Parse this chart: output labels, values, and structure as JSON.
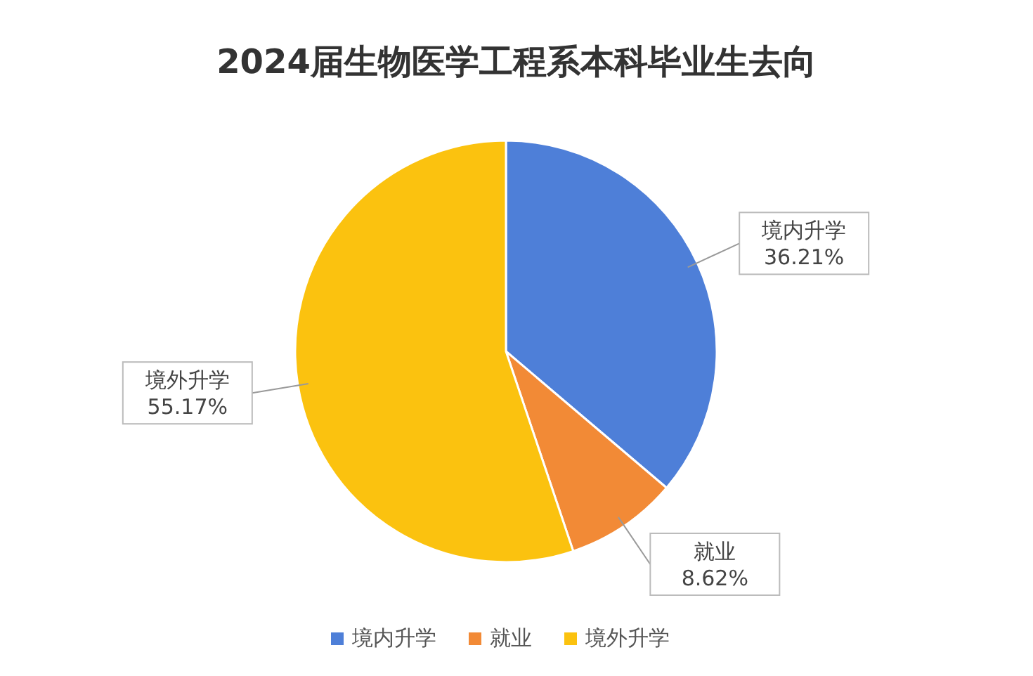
{
  "chart_data": {
    "type": "pie",
    "title": "2024届生物医学工程系本科毕业生去向",
    "categories": [
      "境内升学",
      "就业",
      "境外升学"
    ],
    "values": [
      36.21,
      8.62,
      55.17
    ],
    "value_labels": [
      "36.21%",
      "8.62%",
      "55.17%"
    ],
    "colors": [
      "#4e7fd8",
      "#f28a36",
      "#fbc20f"
    ],
    "legend": "bottom"
  }
}
